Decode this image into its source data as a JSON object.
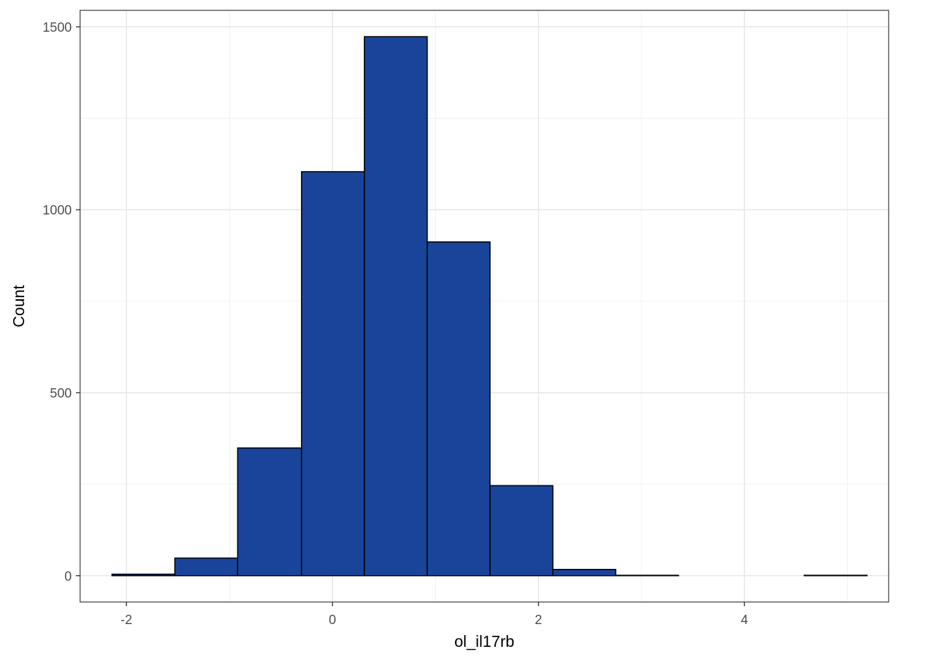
{
  "chart_data": {
    "type": "bar",
    "subtype": "histogram",
    "title": "",
    "xlabel": "ol_il17rb",
    "ylabel": "Count",
    "xlim": [
      -2.45,
      5.4
    ],
    "ylim": [
      -72,
      1545
    ],
    "x_ticks": [
      -2,
      0,
      2,
      4
    ],
    "x_tick_labels": [
      "-2",
      "0",
      "2",
      "4"
    ],
    "y_ticks": [
      0,
      500,
      1000,
      1500
    ],
    "y_tick_labels": [
      "0",
      "500",
      "1000",
      "1500"
    ],
    "grid": true,
    "legend": "none",
    "fill_color": "#19449A",
    "stroke_color": "#000000",
    "bins": [
      {
        "x0": -2.14,
        "x1": -1.53,
        "count": 4
      },
      {
        "x0": -1.53,
        "x1": -0.92,
        "count": 48
      },
      {
        "x0": -0.92,
        "x1": -0.3,
        "count": 349
      },
      {
        "x0": -0.3,
        "x1": 0.31,
        "count": 1104
      },
      {
        "x0": 0.31,
        "x1": 0.92,
        "count": 1473
      },
      {
        "x0": 0.92,
        "x1": 1.53,
        "count": 912
      },
      {
        "x0": 1.53,
        "x1": 2.14,
        "count": 246
      },
      {
        "x0": 2.14,
        "x1": 2.75,
        "count": 17
      },
      {
        "x0": 2.75,
        "x1": 3.36,
        "count": 1
      },
      {
        "x0": 3.36,
        "x1": 3.97,
        "count": 0
      },
      {
        "x0": 3.97,
        "x1": 4.58,
        "count": 0
      },
      {
        "x0": 4.58,
        "x1": 5.19,
        "count": 1
      }
    ]
  }
}
